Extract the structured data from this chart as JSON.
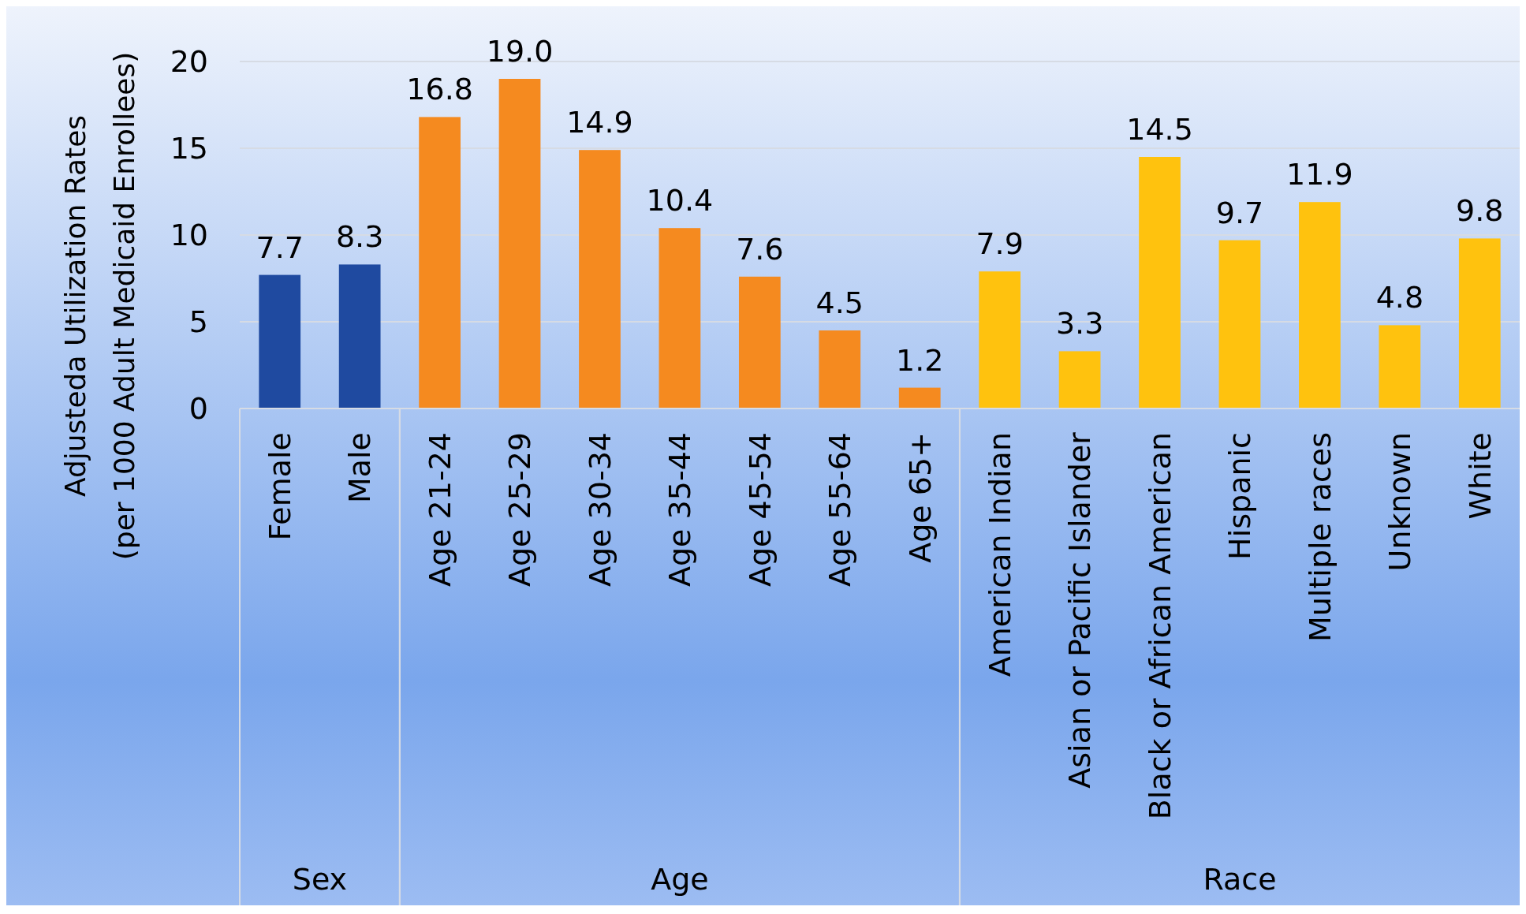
{
  "chart_data": {
    "type": "bar",
    "ylabel": "Adjusteda Utilization Rates\n(per 1000 Adult Medicaid Enrollees)",
    "categories": [
      "Female",
      "Male",
      "Age 21-24",
      "Age 25-29",
      "Age 30-34",
      "Age 35-44",
      "Age 45-54",
      "Age 55-64",
      "Age 65+",
      "American Indian",
      "Asian or Pacific Islander",
      "Black or African American",
      "Hispanic",
      "Multiple races",
      "Unknown",
      "White"
    ],
    "values": [
      7.7,
      8.3,
      16.8,
      19.0,
      14.9,
      10.4,
      7.6,
      4.5,
      1.2,
      7.9,
      3.3,
      14.5,
      9.7,
      11.9,
      4.8,
      9.8
    ],
    "value_labels": [
      "7.7",
      "8.3",
      "16.8",
      "19.0",
      "14.9",
      "10.4",
      "7.6",
      "4.5",
      "1.2",
      "7.9",
      "3.3",
      "14.5",
      "9.7",
      "11.9",
      "4.8",
      "9.8"
    ],
    "colors": [
      "#1f4aa0",
      "#1f4aa0",
      "#f58a1f",
      "#f58a1f",
      "#f58a1f",
      "#f58a1f",
      "#f58a1f",
      "#f58a1f",
      "#f58a1f",
      "#ffc20e",
      "#ffc20e",
      "#ffc20e",
      "#ffc20e",
      "#ffc20e",
      "#ffc20e",
      "#ffc20e"
    ],
    "annotations": [
      "Sex",
      "Age",
      "Race"
    ],
    "ylim": [
      0,
      20
    ],
    "yticks": [
      0,
      5,
      10,
      15,
      20
    ],
    "grid": "y"
  }
}
